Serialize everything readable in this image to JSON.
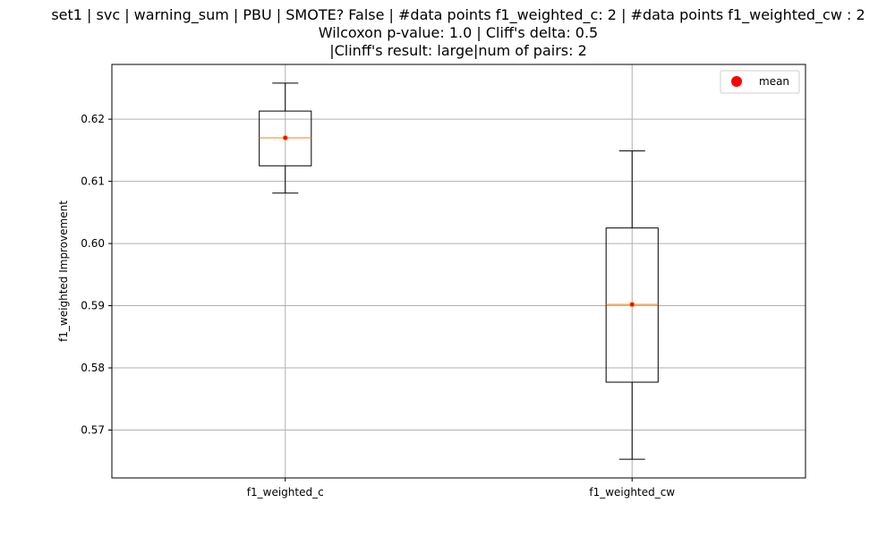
{
  "chart_data": {
    "type": "box",
    "title_lines": [
      "set1 | svc | warning_sum | PBU | SMOTE? False | #data points f1_weighted_c: 2 | #data points f1_weighted_cw : 2",
      "Wilcoxon p-value: 1.0 | Cliff's delta: 0.5",
      "|Clinff's result: large|num of pairs: 2"
    ],
    "xlabel": "",
    "ylabel": "f1_weighted Improvement",
    "ylim": [
      0.5623,
      0.6288
    ],
    "yticks": [
      0.57,
      0.58,
      0.59,
      0.6,
      0.61,
      0.62
    ],
    "ytick_labels": [
      "0.57",
      "0.58",
      "0.59",
      "0.60",
      "0.61",
      "0.62"
    ],
    "grid": true,
    "legend": {
      "position": "top-right",
      "entries": [
        {
          "label": "mean",
          "marker": "circle",
          "color": "#ff0000"
        }
      ]
    },
    "colors": {
      "box": "#000000",
      "median": "#ff7f0e",
      "mean": "#ff0000",
      "grid": "#b0b0b0"
    },
    "categories": [
      "f1_weighted_c",
      "f1_weighted_cw"
    ],
    "boxes": [
      {
        "name": "f1_weighted_c",
        "whisker_low": 0.6081,
        "q1": 0.6125,
        "median": 0.617,
        "q3": 0.6213,
        "whisker_high": 0.6258,
        "mean": 0.617
      },
      {
        "name": "f1_weighted_cw",
        "whisker_low": 0.5653,
        "q1": 0.5777,
        "median": 0.5902,
        "q3": 0.6025,
        "whisker_high": 0.6149,
        "mean": 0.5902
      }
    ]
  }
}
